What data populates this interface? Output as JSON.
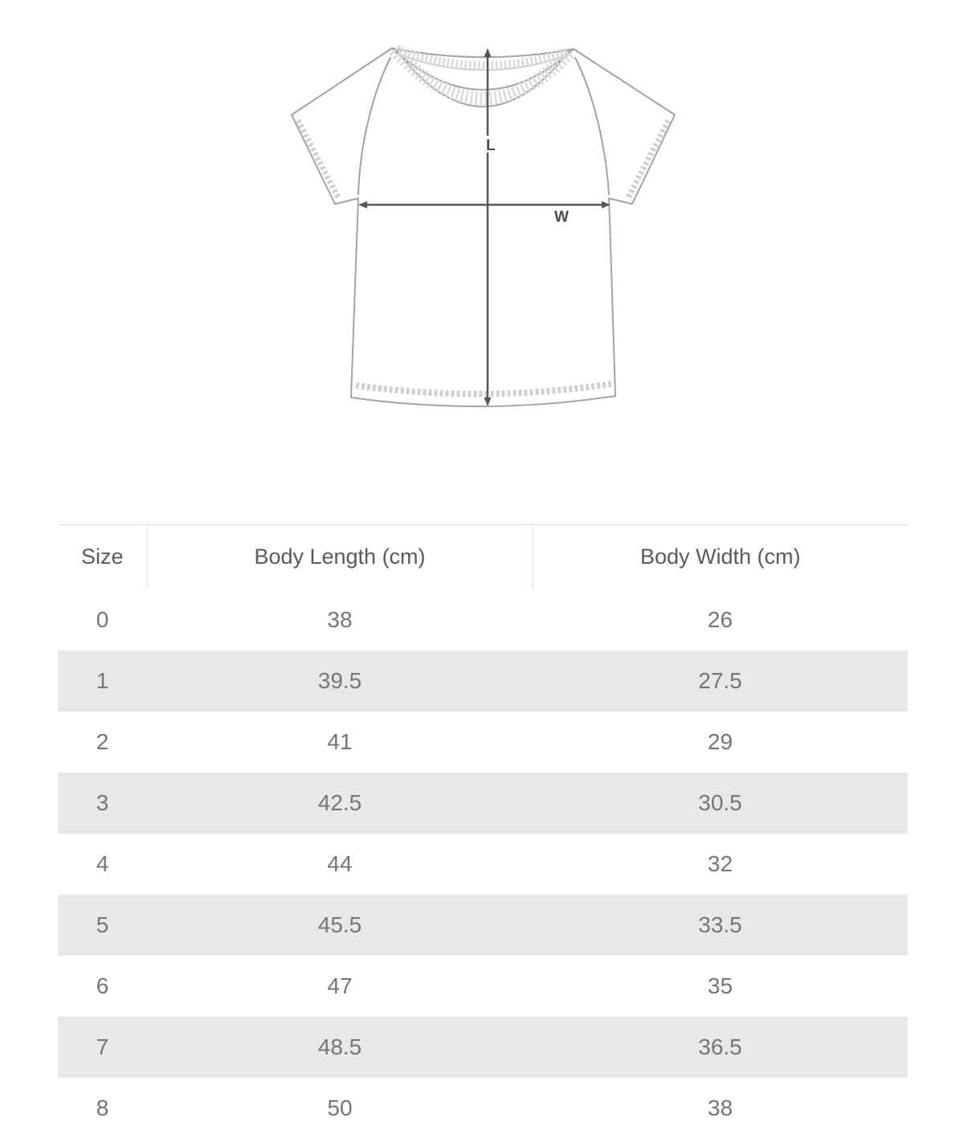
{
  "diagram": {
    "length_label": "L",
    "width_label": "W"
  },
  "table": {
    "headers": [
      "Size",
      "Body Length (cm)",
      "Body Width (cm)"
    ],
    "rows": [
      {
        "size": "0",
        "length": "38",
        "width": "26"
      },
      {
        "size": "1",
        "length": "39.5",
        "width": "27.5"
      },
      {
        "size": "2",
        "length": "41",
        "width": "29"
      },
      {
        "size": "3",
        "length": "42.5",
        "width": "30.5"
      },
      {
        "size": "4",
        "length": "44",
        "width": "32"
      },
      {
        "size": "5",
        "length": "45.5",
        "width": "33.5"
      },
      {
        "size": "6",
        "length": "47",
        "width": "35"
      },
      {
        "size": "7",
        "length": "48.5",
        "width": "36.5"
      },
      {
        "size": "8",
        "length": "50",
        "width": "38"
      }
    ]
  },
  "colors": {
    "stripe": "#e8e8e8",
    "table_border": "#dedede",
    "header_divider": "#e6e6e6",
    "header_text": "#5a5a5a",
    "cell_text": "#757575",
    "sketch_outline": "#a3a3a3",
    "stitch": "#d0d0d0",
    "rib": "#d9d9d9",
    "arrow": "#575757",
    "label": "#4a4a4a"
  }
}
